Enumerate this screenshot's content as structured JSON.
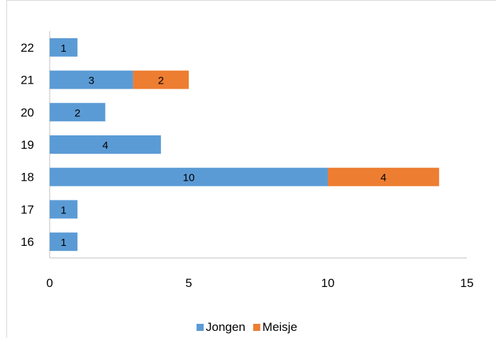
{
  "chart_data": {
    "type": "bar",
    "orientation": "horizontal",
    "stacked": true,
    "categories": [
      "16",
      "17",
      "18",
      "19",
      "20",
      "21",
      "22"
    ],
    "series": [
      {
        "name": "Jongen",
        "values": [
          1,
          1,
          10,
          4,
          2,
          3,
          1
        ],
        "color": "#5b9bd5"
      },
      {
        "name": "Meisje",
        "values": [
          0,
          0,
          4,
          0,
          0,
          2,
          0
        ],
        "color": "#ed7d31"
      }
    ],
    "xlim": [
      0,
      15
    ],
    "xticks": [
      "0",
      "5",
      "10",
      "15"
    ],
    "grid": false,
    "legend_position": "bottom"
  }
}
